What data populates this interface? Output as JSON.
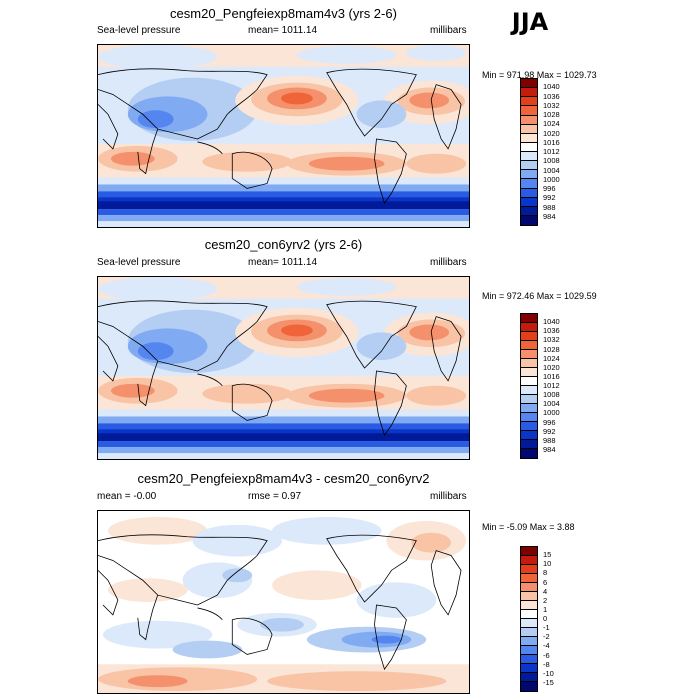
{
  "season": "JJA",
  "colors": {
    "slp_scale": [
      "#7f0000",
      "#c41c0c",
      "#e2401b",
      "#f0643a",
      "#f4906b",
      "#f9c3a6",
      "#fbe5d6",
      "#ffffff",
      "#dce9fa",
      "#b4cdf2",
      "#80abf3",
      "#5586f0",
      "#2a5ce3",
      "#0a35c6",
      "#001a9a",
      "#000870"
    ],
    "diff_scale": [
      "#7f0000",
      "#c41c0c",
      "#e2401b",
      "#f0643a",
      "#f4906b",
      "#f9c3a6",
      "#fbe5d6",
      "#ffffff",
      "#dce9fa",
      "#b4cdf2",
      "#80abf3",
      "#5586f0",
      "#2a5ce3",
      "#0a35c6",
      "#001a9a",
      "#000870"
    ]
  },
  "panels": [
    {
      "title": "cesm20_Pengfeiexp8mam4v3 (yrs 2-6)",
      "left_label": "Sea-level pressure",
      "center_label": "mean= 1011.14",
      "right_label": "millibars",
      "minmax": "Min = 971.98 Max = 1029.73",
      "colorbar_labels": [
        "1040",
        "1036",
        "1032",
        "1028",
        "1024",
        "1020",
        "1016",
        "1012",
        "1008",
        "1004",
        "1000",
        "996",
        "992",
        "988",
        "984"
      ]
    },
    {
      "title": "cesm20_con6yrv2 (yrs 2-6)",
      "left_label": "Sea-level pressure",
      "center_label": "mean= 1011.14",
      "right_label": "millibars",
      "minmax": "Min = 972.46 Max = 1029.59",
      "colorbar_labels": [
        "1040",
        "1036",
        "1032",
        "1028",
        "1024",
        "1020",
        "1016",
        "1012",
        "1008",
        "1004",
        "1000",
        "996",
        "992",
        "988",
        "984"
      ]
    },
    {
      "title": "cesm20_Pengfeiexp8mam4v3 - cesm20_con6yrv2",
      "left_label": "mean =  -0.00",
      "center_label": "rmse =   0.97",
      "right_label": "millibars",
      "minmax": "Min =  -5.09 Max =   3.88",
      "colorbar_labels": [
        "15",
        "10",
        "8",
        "6",
        "4",
        "2",
        "1",
        "0",
        "-1",
        "-2",
        "-4",
        "-6",
        "-8",
        "-10",
        "-15"
      ]
    }
  ]
}
